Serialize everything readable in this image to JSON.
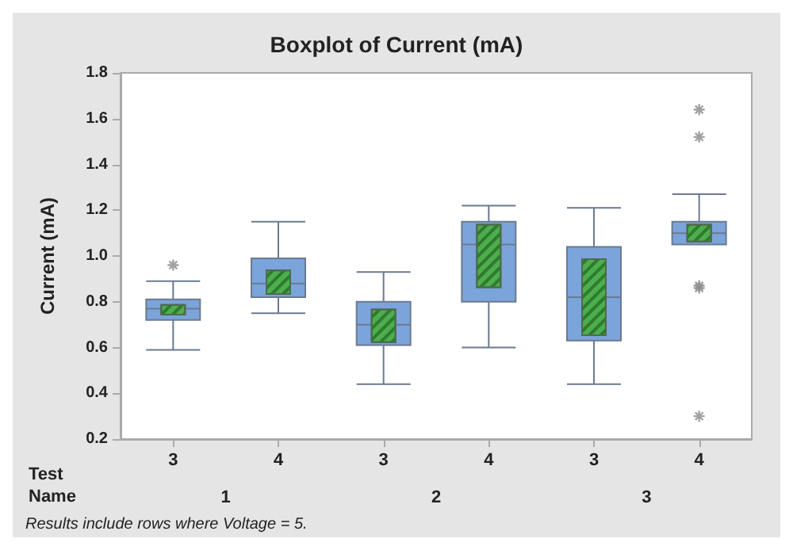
{
  "chart_data": {
    "type": "box",
    "title": "Boxplot of Current (mA)",
    "ylabel": "Current (mA)",
    "categories": [
      "3",
      "4",
      "3",
      "4",
      "3",
      "4"
    ],
    "ylim": [
      0.2,
      1.8
    ],
    "yticks": [
      0.2,
      0.4,
      0.6,
      0.8,
      {
        "value": 1,
        "label": "1.0"
      },
      1.2,
      1.4,
      1.6,
      1.8
    ],
    "annotations": [
      "Test",
      "Name",
      "1",
      "2",
      "3",
      "Results include rows where Voltage = 5."
    ],
    "marker": "cross",
    "series": [
      {
        "color": "#7ba4db",
        "boxes": [
          {
            "low": 0.59,
            "q1": 0.72,
            "median": 0.77,
            "q3": 0.81,
            "high": 0.89,
            "outliers": [
              0.96
            ]
          },
          {
            "low": 0.75,
            "q1": 0.82,
            "median": 0.88,
            "q3": 0.99,
            "high": 1.15
          },
          {
            "low": 0.44,
            "q1": 0.61,
            "median": 0.7,
            "q3": 0.8,
            "high": 0.93
          },
          {
            "low": 0.6,
            "q1": 0.8,
            "median": 1.05,
            "q3": 1.15,
            "high": 1.22
          },
          {
            "low": 0.44,
            "q1": 0.63,
            "median": 0.82,
            "q3": 1.04,
            "high": 1.21
          },
          {
            "low": 1.05,
            "q1": 1.05,
            "median": 1.1,
            "q3": 1.15,
            "high": 1.27,
            "outliers": [
              1.64,
              1.52,
              0.87,
              0.86,
              0.3
            ]
          }
        ]
      },
      {
        "type": "bar",
        "color": "#4cae4c",
        "base": [
          0.74,
          0.83,
          0.62,
          0.86,
          0.65,
          1.06
        ],
        "values": [
          0.05,
          0.11,
          0.15,
          0.28,
          0.34,
          0.08
        ]
      }
    ]
  }
}
